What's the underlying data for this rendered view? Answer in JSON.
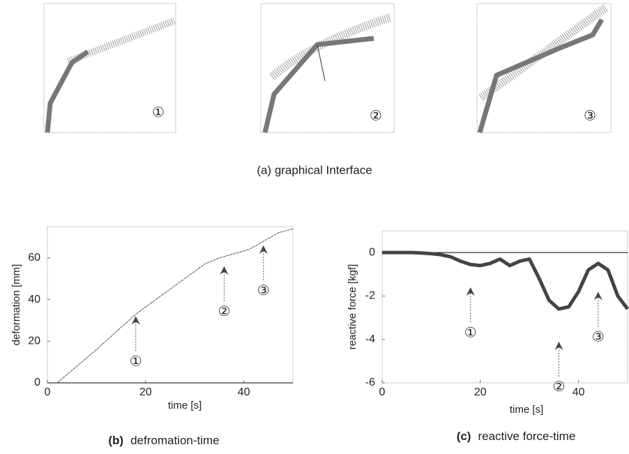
{
  "panels": [
    {
      "label": "①"
    },
    {
      "label": "②"
    },
    {
      "label": "③"
    }
  ],
  "caption": "(a) graphical Interface",
  "chart_data": [
    {
      "type": "line",
      "caption_tag": "(b)",
      "caption": "defromation-time",
      "x_label": "time [s]",
      "y_label": "deformation [mm]",
      "x": [
        2,
        10,
        18,
        25,
        32,
        35,
        38,
        41,
        44,
        47,
        50
      ],
      "values": [
        0,
        16,
        33,
        45,
        57,
        60,
        62,
        64,
        68,
        72,
        74
      ],
      "color": "#555555",
      "xlim": [
        0,
        50
      ],
      "xticks": [
        0,
        20,
        40
      ],
      "ylim": [
        0,
        75
      ],
      "yticks": [
        0,
        20,
        40,
        60
      ],
      "annotations": [
        {
          "text": "①",
          "x": 18,
          "y": 32
        },
        {
          "text": "②",
          "x": 36,
          "y": 56
        },
        {
          "text": "③",
          "x": 44,
          "y": 66
        }
      ]
    },
    {
      "type": "line",
      "caption_tag": "(c)",
      "caption": "reactive force-time",
      "x_label": "time [s]",
      "y_label": "reactive force [kgf]",
      "x": [
        0,
        2,
        4,
        6,
        8,
        10,
        12,
        14,
        16,
        18,
        20,
        22,
        24,
        26,
        28,
        30,
        32,
        34,
        36,
        38,
        40,
        42,
        44,
        46,
        48,
        50
      ],
      "values": [
        0,
        0,
        0,
        0,
        -0.02,
        -0.05,
        -0.1,
        -0.2,
        -0.4,
        -0.55,
        -0.6,
        -0.5,
        -0.3,
        -0.6,
        -0.4,
        -0.3,
        -1.2,
        -2.2,
        -2.6,
        -2.5,
        -1.8,
        -0.8,
        -0.5,
        -0.8,
        -2.0,
        -2.6
      ],
      "color": "#444444",
      "xlim": [
        0,
        50
      ],
      "xticks": [
        0,
        20,
        40
      ],
      "ylim": [
        -6,
        1
      ],
      "yticks": [
        0,
        -2,
        -4,
        -6
      ],
      "annotations": [
        {
          "text": "①",
          "x": 18,
          "y": -1.6
        },
        {
          "text": "②",
          "x": 36,
          "y": -4.1
        },
        {
          "text": "③",
          "x": 44,
          "y": -1.8
        }
      ]
    }
  ]
}
